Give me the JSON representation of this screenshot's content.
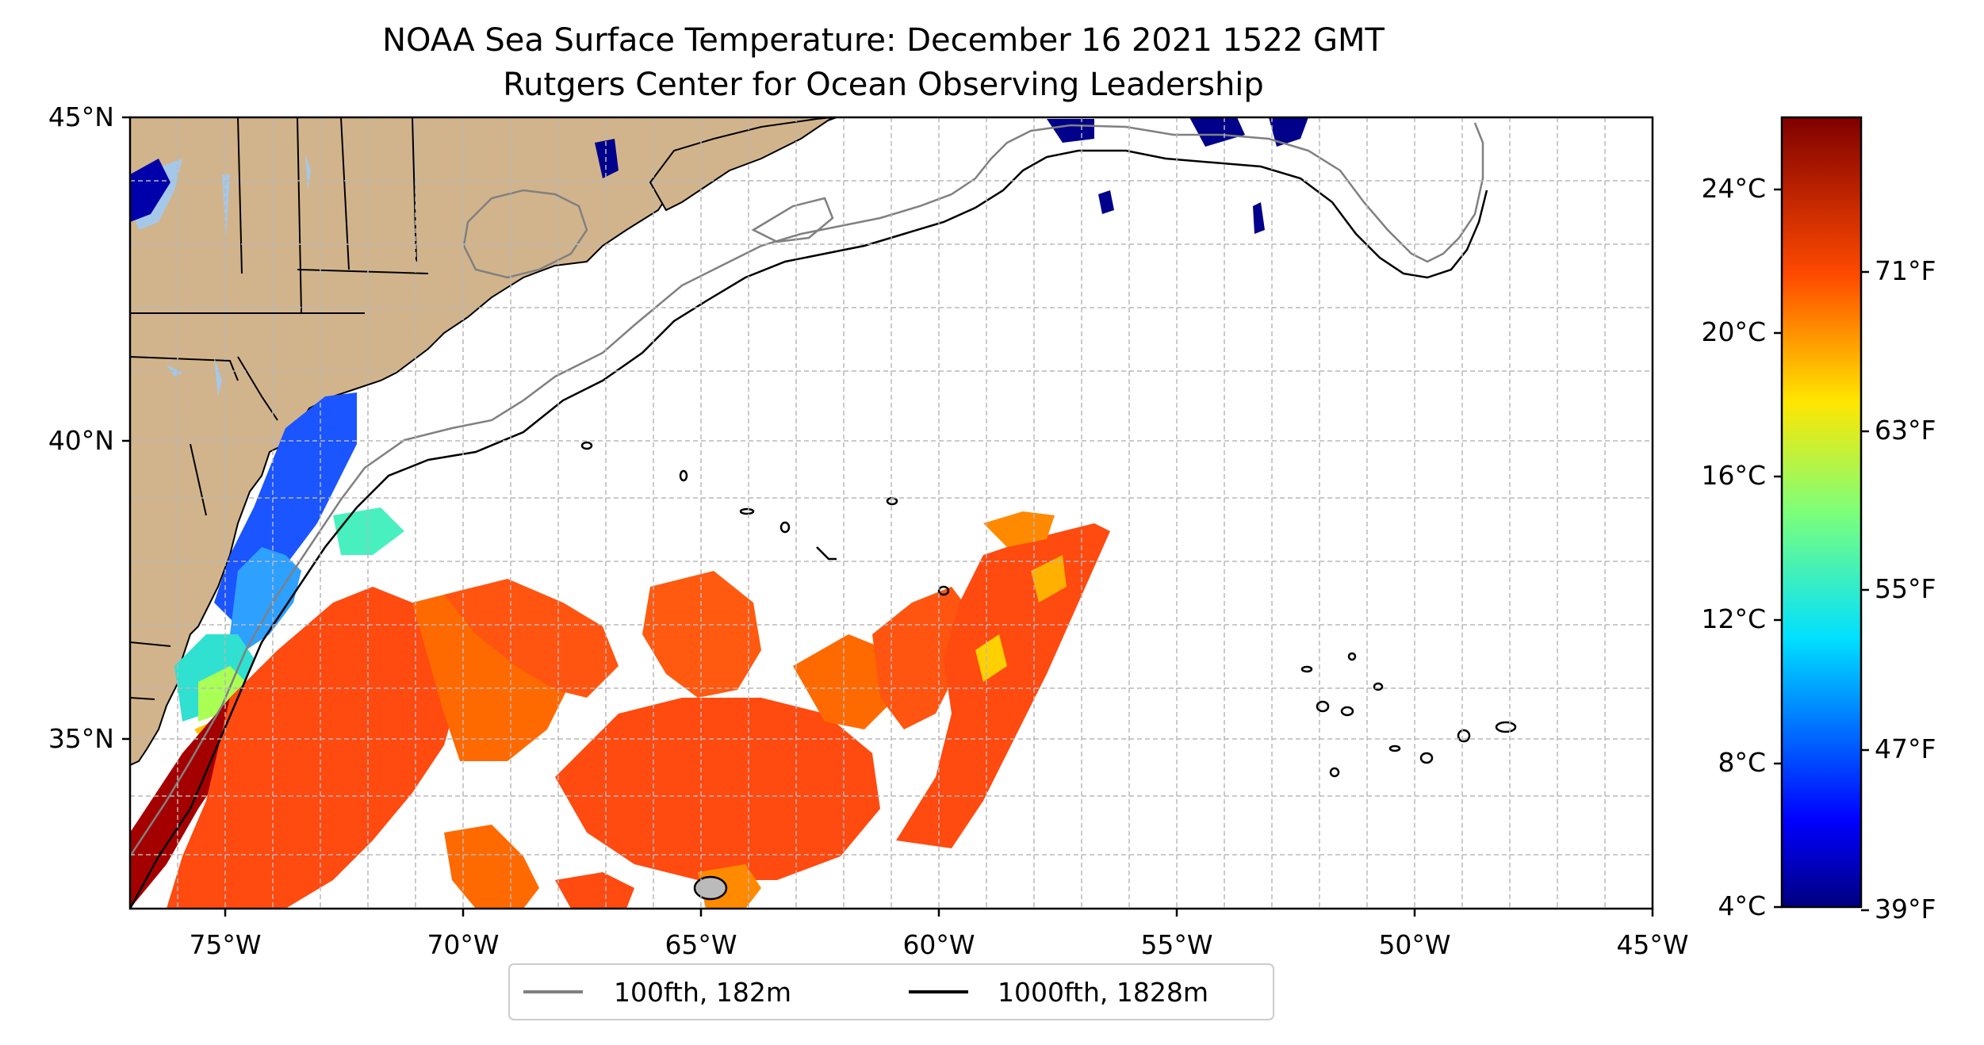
{
  "title": {
    "line1": "NOAA Sea Surface Temperature: December 16 2021 1522 GMT",
    "line2": "Rutgers Center for Ocean Observing Leadership"
  },
  "map": {
    "lon_range": [
      -77,
      -45
    ],
    "lat_range": [
      32.5,
      45
    ],
    "lon_ticks": [
      "75°W",
      "70°W",
      "65°W",
      "60°W",
      "55°W",
      "50°W",
      "45°W"
    ],
    "lat_ticks": [
      "35°N",
      "40°N",
      "45°N"
    ],
    "grid": true,
    "colors": {
      "land": "#d2b48c",
      "water_bodies": "#a6c8e8",
      "isobath_100": "#808080",
      "isobath_1000": "#000000"
    }
  },
  "legend": {
    "items": [
      {
        "label": "100fth, 182m",
        "color": "#808080"
      },
      {
        "label": "1000fth, 1828m",
        "color": "#000000"
      }
    ],
    "placement": "bottom-center"
  },
  "colorbar": {
    "colormap": "jet",
    "celsius_labels": [
      "4°C",
      "8°C",
      "12°C",
      "16°C",
      "20°C",
      "24°C"
    ],
    "fahrenheit_labels": [
      "39°F",
      "47°F",
      "55°F",
      "63°F",
      "71°F"
    ]
  },
  "sst_patches_description_colors": {
    "cold": "#00008b",
    "cool": "#1e6bff",
    "mid": "#18e0e0",
    "warm": "#ffb000",
    "hot": "#ff4a10",
    "very_hot": "#a50000"
  }
}
